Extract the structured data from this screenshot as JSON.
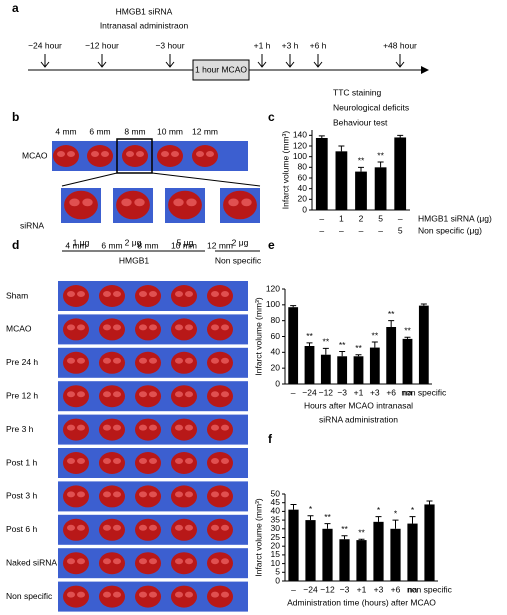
{
  "panel_letters": [
    "a",
    "b",
    "c",
    "d",
    "e",
    "f"
  ],
  "panel_a": {
    "treatment": "HMGB1  siRNA",
    "route": "Intranasal administraon",
    "times": [
      "−24 hour",
      "−12 hour",
      "−3 hour",
      "1 hour MCAO",
      "+1 h",
      "+3 h",
      "+6 h",
      "+48 hour"
    ],
    "outcomes": [
      "TTC staining",
      "Neurological deficits",
      "Behaviour test"
    ]
  },
  "panel_b": {
    "slices": [
      "4 mm",
      "6 mm",
      "8 mm",
      "10 mm",
      "12 mm"
    ],
    "row_top": "MCAO",
    "row_bottom": "siRNA",
    "doses": [
      "1 μg",
      "2 μg",
      "5 μg",
      "2 μg"
    ],
    "group_hmgb1": "HMGB1",
    "group_nonspecific": "Non specific"
  },
  "panel_d": {
    "slices": [
      "4 mm",
      "6 mm",
      "8 mm",
      "10 mm",
      "12 mm"
    ],
    "rows": [
      "Sham",
      "MCAO",
      "Pre 24 h",
      "Pre 12 h",
      "Pre 3 h",
      "Post 1 h",
      "Post 3 h",
      "Post 6 h",
      "Naked siRNA",
      "Non specific"
    ]
  },
  "chart_data": [
    {
      "type": "bar",
      "y_label": "Infarct volume (mm³)",
      "categories_name": "HMGB1 siRNA (μg)",
      "categories": [
        "–",
        "1",
        "2",
        "5",
        "–"
      ],
      "secondary_categories": {
        "name": "Non specific (μg)",
        "labels": [
          "–",
          "–",
          "–",
          "–",
          "5"
        ]
      },
      "values": [
        135,
        110,
        72,
        80,
        136
      ],
      "errors": [
        4,
        10,
        8,
        10,
        4
      ],
      "significance": [
        null,
        null,
        "**",
        "**",
        null
      ],
      "color": "#000000",
      "ylim": [
        0,
        150
      ],
      "yticks": [
        0,
        20,
        40,
        60,
        80,
        100,
        120,
        140
      ]
    },
    {
      "type": "bar",
      "y_label": "Infarct volume (mm³)",
      "x_label": [
        "Hours after MCAO intranasal",
        "siRNA administration"
      ],
      "categories": [
        "–",
        "−24",
        "−12",
        "−3",
        "+1",
        "+3",
        "+6",
        "na",
        "non specific"
      ],
      "values": [
        97,
        48,
        37,
        35,
        35,
        46,
        72,
        57,
        99
      ],
      "errors": [
        2,
        4,
        8,
        6,
        2,
        7,
        8,
        2,
        2
      ],
      "significance": [
        null,
        "**",
        "**",
        "**",
        "**",
        "**",
        "**",
        "**",
        null
      ],
      "color": "#000000",
      "ylim": [
        0,
        120
      ],
      "yticks": [
        0,
        20,
        40,
        60,
        80,
        100,
        120
      ]
    },
    {
      "type": "bar",
      "y_label": "Infarct volume (mm³)",
      "x_label": [
        "Administration time (hours) after MCAO"
      ],
      "categories": [
        "–",
        "−24",
        "−12",
        "−3",
        "+1",
        "+3",
        "+6",
        "na",
        "non specific"
      ],
      "values": [
        41,
        35,
        30,
        24,
        23.5,
        34,
        30,
        33,
        44
      ],
      "errors": [
        3,
        2.5,
        3,
        2,
        0.5,
        3,
        5,
        4,
        2
      ],
      "significance": [
        null,
        "*",
        "**",
        "**",
        "**",
        "*",
        "*",
        "*",
        null
      ],
      "color": "#000000",
      "ylim": [
        0,
        50
      ],
      "yticks": [
        0,
        5,
        10,
        15,
        20,
        25,
        30,
        35,
        40,
        45,
        50
      ]
    }
  ]
}
